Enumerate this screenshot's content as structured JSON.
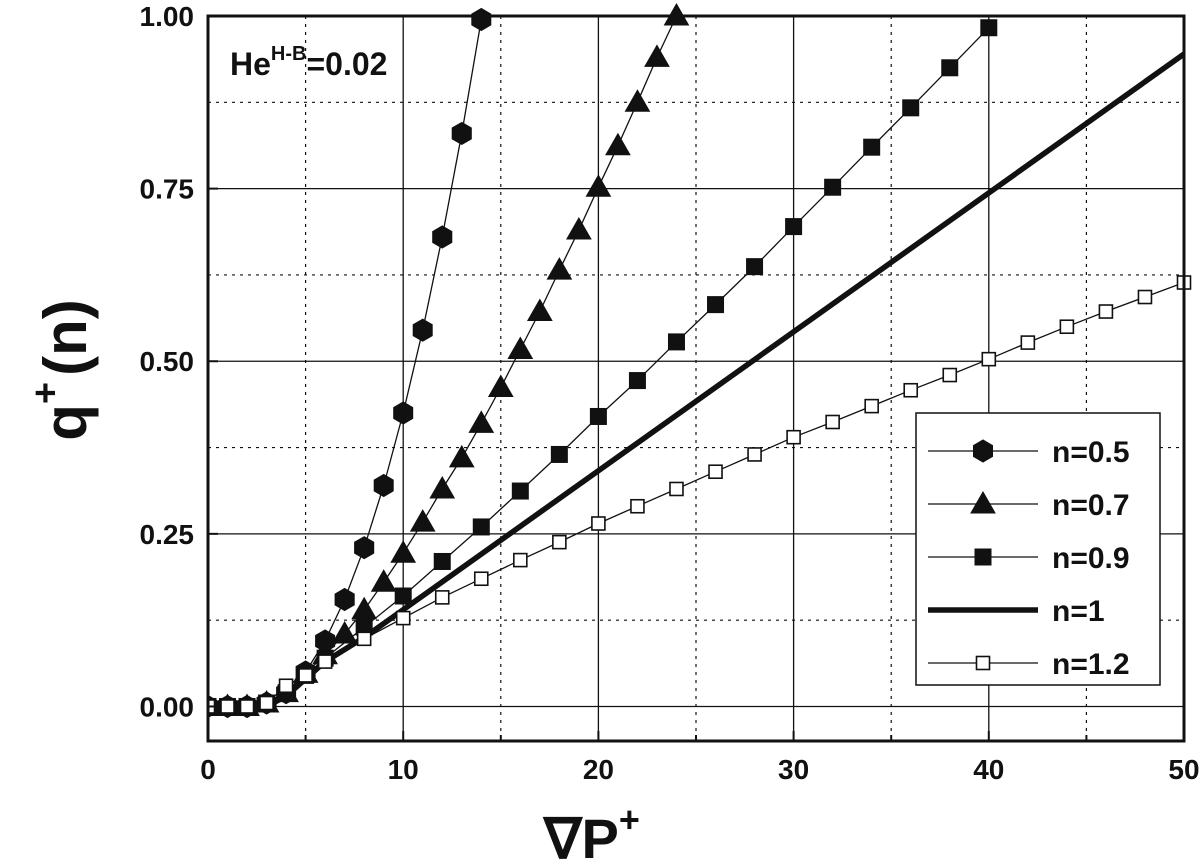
{
  "chart_data": {
    "type": "line",
    "title": "",
    "xlabel": "∇P",
    "xlabel_superscript": "+",
    "ylabel": "q",
    "ylabel_superscript": "+",
    "ylabel_suffix": "(n)",
    "xlim": [
      0,
      50
    ],
    "ylim": [
      -0.05,
      1.0
    ],
    "x_ticks": [
      0,
      10,
      20,
      30,
      40,
      50
    ],
    "x_tick_labels": [
      "0",
      "10",
      "20",
      "30",
      "40",
      "50"
    ],
    "y_ticks": [
      0.0,
      0.25,
      0.5,
      0.75,
      1.0
    ],
    "y_tick_labels": [
      "0.00",
      "0.25",
      "0.50",
      "0.75",
      "1.00"
    ],
    "x_minor_ticks": [
      5,
      15,
      25,
      35,
      45
    ],
    "y_minor_ticks": [
      0.125,
      0.375,
      0.625,
      0.875
    ],
    "grid": true,
    "legend_position": "bottom-right",
    "annotation": {
      "base": "He",
      "superscript": "H-B",
      "suffix": "=0.02"
    },
    "series": [
      {
        "name": "n=0.5",
        "marker": "hexagon",
        "line": "thin",
        "x": [
          0,
          1,
          2,
          3,
          4,
          5,
          6,
          7,
          8,
          9,
          10,
          11,
          12,
          13,
          14
        ],
        "y": [
          0.0,
          0.0,
          0.0,
          0.005,
          0.02,
          0.05,
          0.095,
          0.155,
          0.23,
          0.32,
          0.425,
          0.545,
          0.68,
          0.83,
          0.995
        ]
      },
      {
        "name": "n=0.7",
        "marker": "triangle",
        "line": "thin",
        "x": [
          0,
          1,
          2,
          3,
          4,
          5,
          6,
          7,
          8,
          9,
          10,
          11,
          12,
          13,
          14,
          15,
          16,
          17,
          18,
          19,
          20,
          21,
          22,
          23,
          24
        ],
        "y": [
          0.0,
          0.0,
          0.0,
          0.005,
          0.02,
          0.048,
          0.075,
          0.105,
          0.14,
          0.18,
          0.222,
          0.267,
          0.315,
          0.36,
          0.41,
          0.462,
          0.517,
          0.572,
          0.632,
          0.69,
          0.752,
          0.812,
          0.875,
          0.94,
          1.0
        ]
      },
      {
        "name": "n=0.9",
        "marker": "square-filled",
        "line": "thin",
        "x": [
          0,
          1,
          2,
          3,
          4,
          5,
          6,
          8,
          10,
          12,
          14,
          16,
          18,
          20,
          22,
          24,
          26,
          28,
          30,
          32,
          34,
          36,
          38,
          40
        ],
        "y": [
          0.0,
          0.0,
          0.0,
          0.005,
          0.02,
          0.045,
          0.07,
          0.115,
          0.16,
          0.21,
          0.26,
          0.312,
          0.365,
          0.42,
          0.472,
          0.528,
          0.582,
          0.637,
          0.695,
          0.752,
          0.81,
          0.867,
          0.925,
          0.983
        ]
      },
      {
        "name": "n=1",
        "marker": "none",
        "line": "thick",
        "x": [
          0,
          3,
          4,
          5,
          6,
          8,
          50
        ],
        "y": [
          0.0,
          0.0,
          0.015,
          0.04,
          0.065,
          0.1,
          0.945
        ]
      },
      {
        "name": "n=1.2",
        "marker": "square-open",
        "line": "thin",
        "x": [
          0,
          1,
          2,
          3,
          4,
          5,
          6,
          8,
          10,
          12,
          14,
          16,
          18,
          20,
          22,
          24,
          26,
          28,
          30,
          32,
          34,
          36,
          38,
          40,
          42,
          44,
          46,
          48,
          50
        ],
        "y": [
          0.0,
          0.0,
          0.0,
          0.005,
          0.03,
          0.045,
          0.065,
          0.098,
          0.128,
          0.158,
          0.185,
          0.212,
          0.238,
          0.265,
          0.29,
          0.315,
          0.34,
          0.365,
          0.39,
          0.412,
          0.435,
          0.458,
          0.48,
          0.503,
          0.527,
          0.55,
          0.572,
          0.593,
          0.614
        ]
      }
    ]
  }
}
